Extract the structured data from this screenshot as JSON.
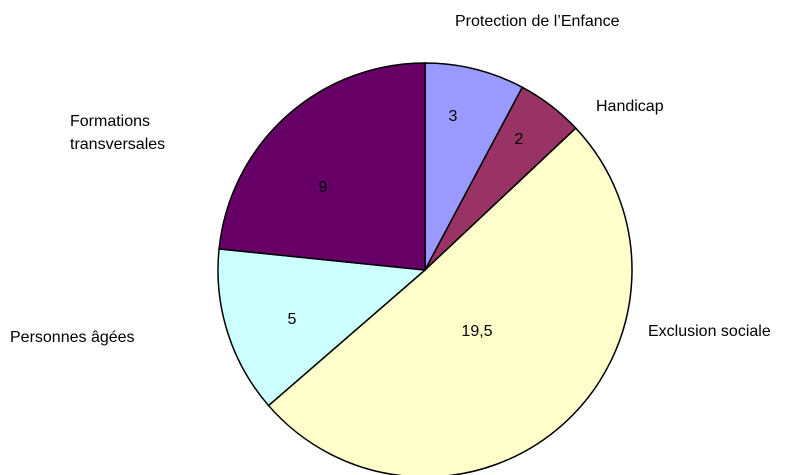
{
  "chart_data": {
    "type": "pie",
    "categories": [
      "Protection de l’Enfance",
      "Handicap",
      "Exclusion sociale",
      "Personnes âgées",
      "Formations transversales"
    ],
    "values": [
      3,
      2,
      19.5,
      5,
      9
    ],
    "value_labels": [
      "3",
      "2",
      "19,5",
      "5",
      "9"
    ],
    "colors": [
      "#9999ff",
      "#993366",
      "#ffffcc",
      "#ccffff",
      "#660066"
    ]
  }
}
